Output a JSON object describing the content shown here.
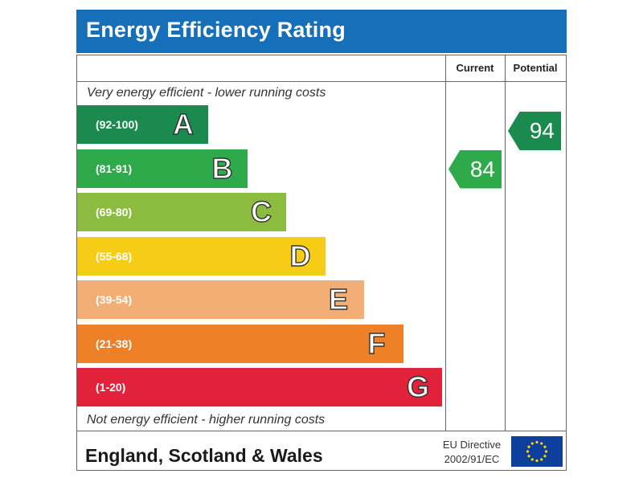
{
  "header": {
    "title": "Energy Efficiency Rating"
  },
  "columns": {
    "current": "Current",
    "potential": "Potential"
  },
  "captions": {
    "top": "Very energy efficient - lower running costs",
    "bottom": "Not energy efficient - higher running costs"
  },
  "footer": {
    "region": "England, Scotland & Wales",
    "directive_line1": "EU Directive",
    "directive_line2": "2002/91/EC",
    "flag_icon": "eu-flag-icon"
  },
  "chart_data": {
    "type": "bar",
    "title": "Energy Efficiency Rating",
    "categories": [
      "A",
      "B",
      "C",
      "D",
      "E",
      "F",
      "G"
    ],
    "bands": [
      {
        "letter": "A",
        "range": "(92-100)",
        "color": "#1a8a4f"
      },
      {
        "letter": "B",
        "range": "(81-91)",
        "color": "#2eaa4a"
      },
      {
        "letter": "C",
        "range": "(69-80)",
        "color": "#8cbc3f"
      },
      {
        "letter": "D",
        "range": "(55-68)",
        "color": "#f7cc16"
      },
      {
        "letter": "E",
        "range": "(39-54)",
        "color": "#f2ae74"
      },
      {
        "letter": "F",
        "range": "(21-38)",
        "color": "#ee8127"
      },
      {
        "letter": "G",
        "range": "(1-20)",
        "color": "#e2213b"
      }
    ],
    "current": {
      "value": 84,
      "band": "B",
      "color": "#2eaa4a"
    },
    "potential": {
      "value": 94,
      "band": "A",
      "color": "#1a8a4f"
    }
  }
}
